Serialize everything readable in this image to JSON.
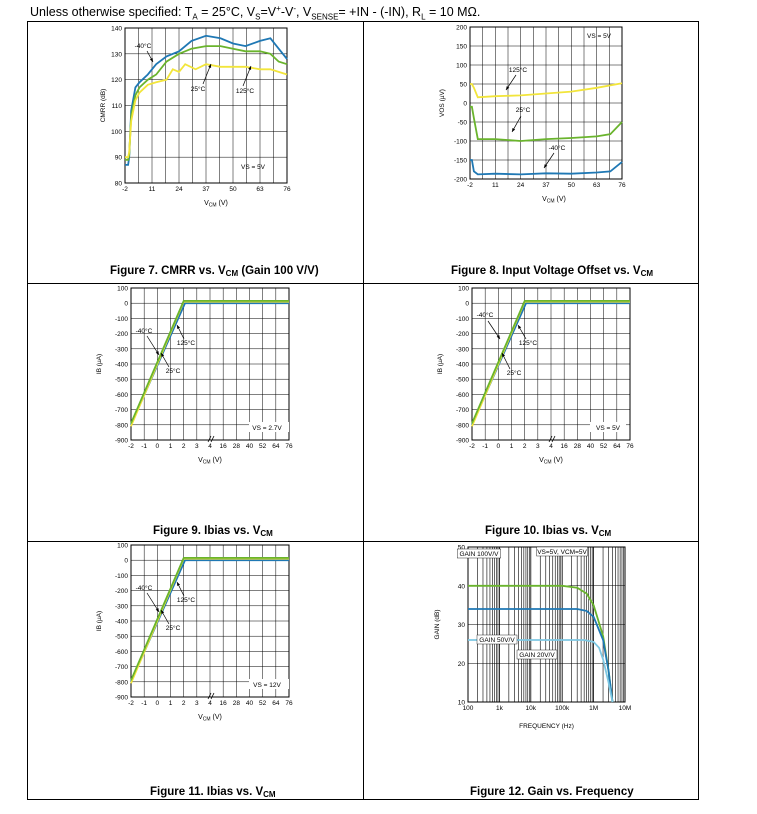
{
  "header": {
    "pre": "Unless otherwise specified: T",
    "ta_sub": "A",
    "ta_val": " = 25°C, V",
    "vs_sub": "S",
    "vs_eq": "=V",
    "vp": "+",
    "vm_pre": "-V",
    "vm": "-",
    "vsense_pre": ", V",
    "vsense_sub": "SENSE",
    "vsense_val": "= +IN - (-IN), R",
    "rl_sub": "L",
    "rl_val": " = 10 MΩ."
  },
  "colors": {
    "blue": "#1f78b4",
    "green": "#6ab42d",
    "yellow": "#f2e53b",
    "grid": "#000000"
  },
  "figures": [
    {
      "caption_pre": "Figure 7.  CMRR vs. V",
      "caption_sub": "CM",
      "caption_post": " (Gain 100 V/V)"
    },
    {
      "caption_pre": "Figure 8. Input Voltage Offset vs. V",
      "caption_sub": "CM",
      "caption_post": ""
    },
    {
      "caption_pre": "Figure 9. Ibias vs. V",
      "caption_sub": "CM",
      "caption_post": ""
    },
    {
      "caption_pre": "Figure 10. Ibias vs. V",
      "caption_sub": "CM",
      "caption_post": ""
    },
    {
      "caption_pre": "Figure 11. Ibias vs. V",
      "caption_sub": "CM",
      "caption_post": ""
    },
    {
      "caption_pre": "Figure 12. Gain vs. Frequency",
      "caption_sub": "",
      "caption_post": ""
    }
  ],
  "chart_data": [
    {
      "type": "line",
      "ylabel": "CMRR (dB)",
      "xlabel": "VCM (V)",
      "xticks": [
        "-2",
        "11",
        "24",
        "37",
        "50",
        "63",
        "76"
      ],
      "yticks": [
        "80",
        "90",
        "100",
        "110",
        "120",
        "130",
        "140"
      ],
      "xlim": [
        -2,
        76
      ],
      "ylim": [
        80,
        140
      ],
      "annotations": [
        "-40°C",
        "25°C",
        "125°C",
        "VS = 5V"
      ],
      "series": [
        {
          "name": "-40°C",
          "color": "blue",
          "x": [
            -2,
            -0.5,
            0,
            1,
            3,
            5,
            9,
            13,
            18,
            24,
            30,
            37,
            44,
            50,
            56,
            63,
            68,
            72,
            76
          ],
          "y": [
            87,
            87,
            90,
            108,
            117,
            119,
            122,
            126,
            129,
            131,
            135,
            137,
            136,
            134,
            133,
            135,
            136,
            132,
            128
          ]
        },
        {
          "name": "125°C",
          "color": "green",
          "x": [
            -2,
            -0.5,
            0,
            1,
            3,
            5,
            9,
            13,
            18,
            24,
            30,
            37,
            44,
            50,
            56,
            63,
            68,
            72,
            76
          ],
          "y": [
            89,
            89,
            91,
            106,
            114,
            117,
            120,
            122,
            127,
            130,
            132,
            133,
            133,
            132,
            131,
            131,
            130,
            127,
            126
          ]
        },
        {
          "name": "25°C",
          "color": "yellow",
          "x": [
            -2,
            -0.5,
            0,
            1,
            3,
            5,
            9,
            13,
            18,
            21,
            24,
            27,
            32,
            37,
            44,
            50,
            56,
            63,
            68,
            72,
            76
          ],
          "y": [
            90,
            90,
            92,
            104,
            112,
            115,
            118,
            119,
            120,
            124,
            123,
            126,
            124,
            126,
            125,
            125,
            125,
            124,
            124,
            123,
            122
          ]
        }
      ]
    },
    {
      "type": "line",
      "ylabel": "VOS (µV)",
      "xlabel": "VCM (V)",
      "xticks": [
        "-2",
        "11",
        "24",
        "37",
        "50",
        "63",
        "76"
      ],
      "yticks": [
        "-200",
        "-150",
        "-100",
        "-50",
        "0",
        "50",
        "100",
        "150",
        "200"
      ],
      "xlim": [
        -2,
        76
      ],
      "ylim": [
        -200,
        200
      ],
      "annotations": [
        "VS = 5V",
        "125°C",
        "25°C",
        "-40°C"
      ],
      "series": [
        {
          "name": "125°C",
          "color": "yellow",
          "x": [
            -2,
            -1,
            0,
            2,
            11,
            24,
            37,
            50,
            63,
            76
          ],
          "y": [
            50,
            50,
            40,
            15,
            18,
            20,
            25,
            30,
            40,
            52
          ]
        },
        {
          "name": "25°C",
          "color": "green",
          "x": [
            -2,
            -1,
            0,
            2,
            11,
            24,
            37,
            50,
            63,
            70,
            76
          ],
          "y": [
            -10,
            -10,
            -40,
            -95,
            -95,
            -100,
            -95,
            -92,
            -88,
            -82,
            -50
          ]
        },
        {
          "name": "-40°C",
          "color": "blue",
          "x": [
            -2,
            -1,
            0,
            2,
            11,
            24,
            37,
            50,
            63,
            70,
            76
          ],
          "y": [
            -150,
            -150,
            -180,
            -188,
            -186,
            -188,
            -185,
            -186,
            -183,
            -180,
            -155
          ]
        }
      ]
    },
    {
      "type": "line",
      "ylabel": "IB (µA)",
      "xlabel": "VCM (V)",
      "xticks": [
        "-2",
        "-1",
        "0",
        "1",
        "2",
        "3",
        "4",
        "16",
        "28",
        "40",
        "52",
        "64",
        "76"
      ],
      "yticks": [
        "-900",
        "-800",
        "-700",
        "-600",
        "-500",
        "-400",
        "-300",
        "-200",
        "-100",
        "0",
        "100"
      ],
      "ylim": [
        -900,
        100
      ],
      "annotations": [
        "-40°C",
        "125°C",
        "25°C",
        "VS = 2.7V"
      ],
      "series": [
        {
          "name": "-40°C",
          "color": "blue",
          "x": [
            -2,
            2.1,
            2.5,
            76
          ],
          "y": [
            -800,
            0,
            0,
            0
          ]
        },
        {
          "name": "25°C",
          "color": "yellow",
          "x": [
            -2,
            2.0,
            2.4,
            76
          ],
          "y": [
            -810,
            10,
            10,
            10
          ]
        },
        {
          "name": "125°C",
          "color": "green",
          "x": [
            -2,
            2.0,
            2.4,
            76
          ],
          "y": [
            -790,
            15,
            15,
            15
          ]
        }
      ]
    },
    {
      "type": "line",
      "ylabel": "IB (µA)",
      "xlabel": "VCM (V)",
      "xticks": [
        "-2",
        "-1",
        "0",
        "1",
        "2",
        "3",
        "4",
        "16",
        "28",
        "40",
        "52",
        "64",
        "76"
      ],
      "yticks": [
        "-900",
        "-800",
        "-700",
        "-600",
        "-500",
        "-400",
        "-300",
        "-200",
        "-100",
        "0",
        "100"
      ],
      "ylim": [
        -900,
        100
      ],
      "annotations": [
        "-40°C",
        "125°C",
        "25°C",
        "VS = 5V"
      ],
      "series": [
        {
          "name": "-40°C",
          "color": "blue",
          "x": [
            -2,
            2.1,
            2.5,
            76
          ],
          "y": [
            -800,
            0,
            0,
            0
          ]
        },
        {
          "name": "25°C",
          "color": "yellow",
          "x": [
            -2,
            2.0,
            2.4,
            76
          ],
          "y": [
            -810,
            10,
            10,
            10
          ]
        },
        {
          "name": "125°C",
          "color": "green",
          "x": [
            -2,
            2.0,
            2.4,
            76
          ],
          "y": [
            -790,
            15,
            15,
            15
          ]
        }
      ]
    },
    {
      "type": "line",
      "ylabel": "IB (µA)",
      "xlabel": "VCM (V)",
      "xticks": [
        "-2",
        "-1",
        "0",
        "1",
        "2",
        "3",
        "4",
        "16",
        "28",
        "40",
        "52",
        "64",
        "76"
      ],
      "yticks": [
        "-900",
        "-800",
        "-700",
        "-600",
        "-500",
        "-400",
        "-300",
        "-200",
        "-100",
        "0",
        "100"
      ],
      "ylim": [
        -900,
        100
      ],
      "annotations": [
        "-40°C",
        "125°C",
        "25°C",
        "VS = 12V"
      ],
      "series": [
        {
          "name": "-40°C",
          "color": "blue",
          "x": [
            -2,
            2.1,
            2.5,
            76
          ],
          "y": [
            -800,
            0,
            0,
            0
          ]
        },
        {
          "name": "25°C",
          "color": "yellow",
          "x": [
            -2,
            2.0,
            2.4,
            76
          ],
          "y": [
            -810,
            10,
            10,
            10
          ]
        },
        {
          "name": "125°C",
          "color": "green",
          "x": [
            -2,
            2.0,
            2.4,
            76
          ],
          "y": [
            -790,
            15,
            15,
            15
          ]
        }
      ]
    },
    {
      "type": "line",
      "ylabel": "GAIN (dB)",
      "xlabel": "FREQUENCY (Hz)",
      "xscale": "log",
      "xticks": [
        "100",
        "1k",
        "10k",
        "100k",
        "1M",
        "10M"
      ],
      "yticks": [
        "10",
        "20",
        "30",
        "40",
        "50"
      ],
      "xlim": [
        100,
        10000000
      ],
      "ylim": [
        10,
        50
      ],
      "annotations": [
        "GAIN 100V/V",
        "VS=5V, VCM=5V",
        "GAIN 50V/V",
        "GAIN 20V/V"
      ],
      "series": [
        {
          "name": "GAIN 100V/V",
          "color": "green",
          "x": [
            100,
            100000,
            300000,
            600000,
            1000000,
            2000000,
            3000000,
            4000000
          ],
          "y": [
            40,
            40,
            39.5,
            38,
            35,
            27,
            18,
            10
          ]
        },
        {
          "name": "GAIN 50V/V",
          "color": "blue",
          "x": [
            100,
            300000,
            600000,
            1000000,
            2000000,
            3000000,
            4000000
          ],
          "y": [
            34,
            34,
            33.5,
            32,
            26,
            18,
            10
          ]
        },
        {
          "name": "GAIN 20V/V",
          "color": "lightblue",
          "x": [
            100,
            500000,
            1000000,
            1500000,
            2000000,
            3000000,
            4000000
          ],
          "y": [
            26,
            26,
            25.5,
            24,
            21,
            15,
            10
          ]
        }
      ]
    }
  ]
}
